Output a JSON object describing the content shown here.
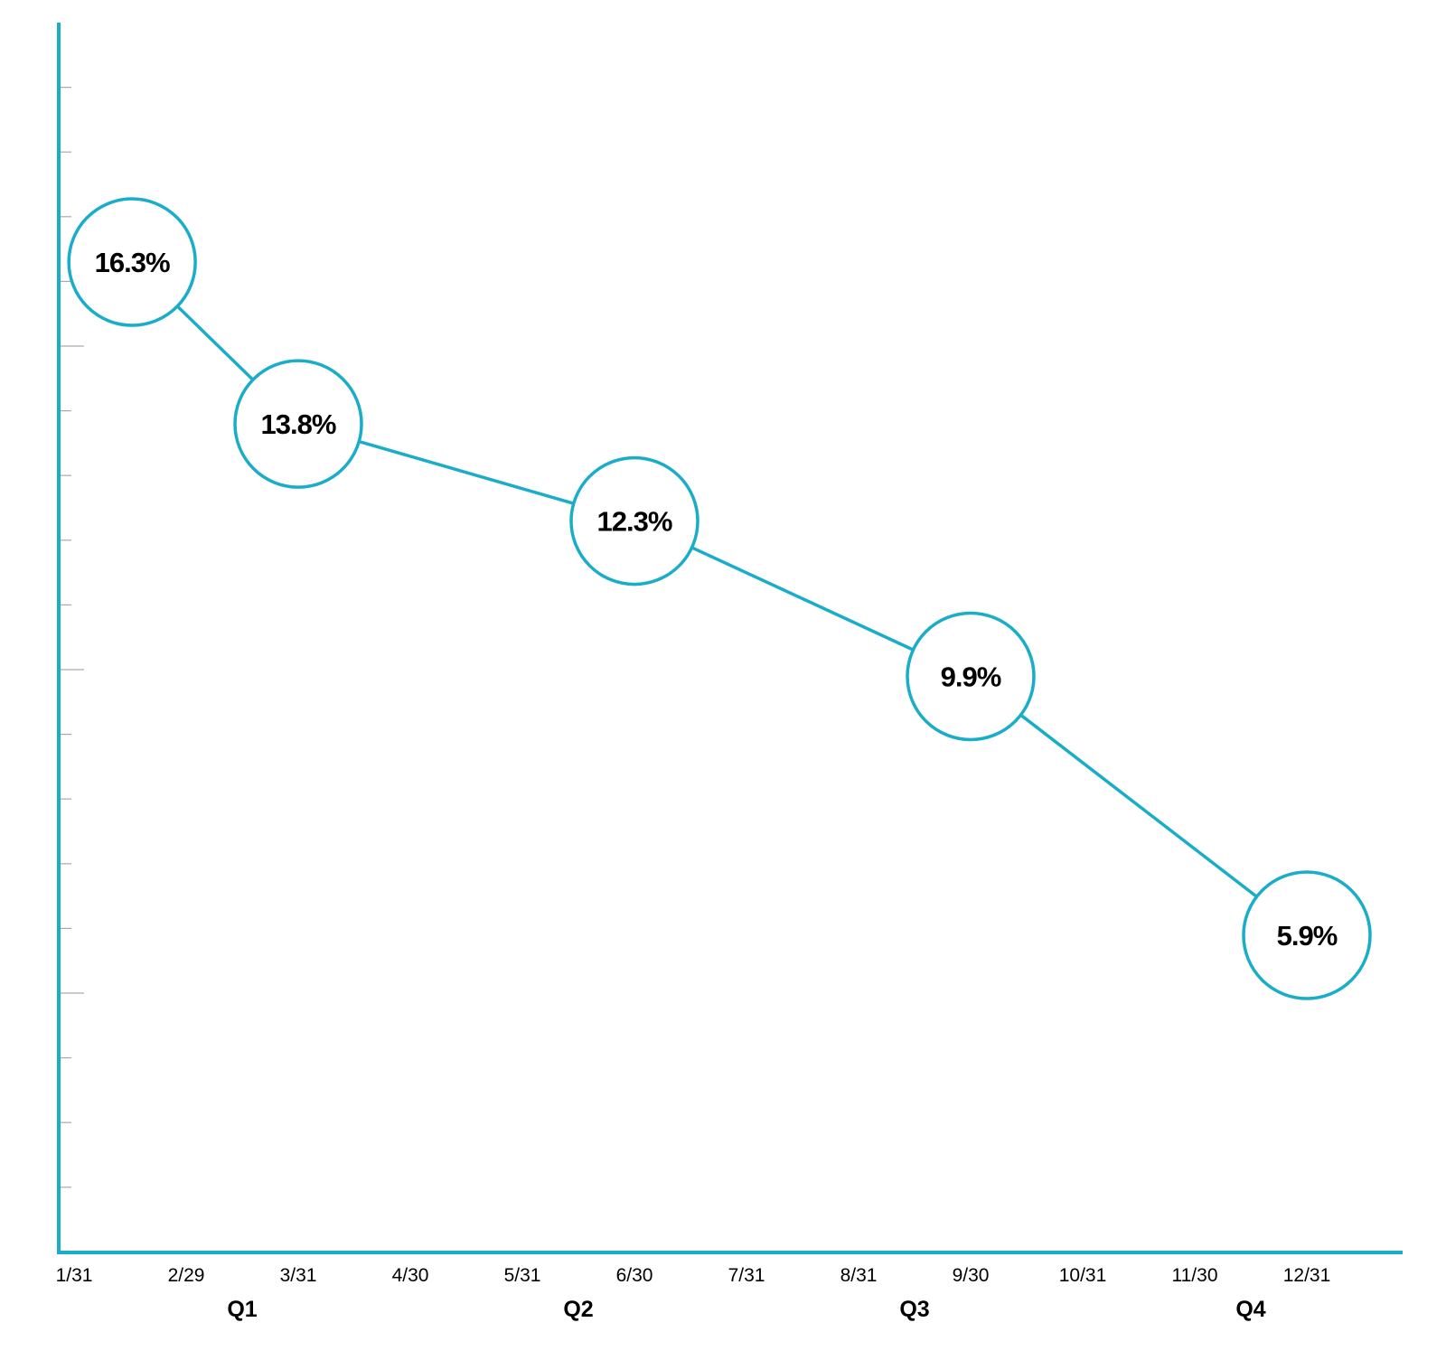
{
  "colors": {
    "accent": "#1aadc8",
    "tick": "#aaaaaa",
    "text": "#000000",
    "background": "#ffffff"
  },
  "chart_data": {
    "type": "line",
    "title": "",
    "xlabel": "",
    "ylabel": "",
    "grid": false,
    "legend": "none",
    "x_ticks": [
      "1/31",
      "2/29",
      "3/31",
      "4/30",
      "5/31",
      "6/30",
      "7/31",
      "8/31",
      "9/30",
      "10/31",
      "11/30",
      "12/31"
    ],
    "quarters": [
      "Q1",
      "Q2",
      "Q3",
      "Q4"
    ],
    "series": [
      {
        "points": [
          {
            "x": "2/15",
            "y": 16.3,
            "label": "16.3%"
          },
          {
            "x": "3/31",
            "y": 13.8,
            "label": "13.8%"
          },
          {
            "x": "6/30",
            "y": 12.3,
            "label": "12.3%"
          },
          {
            "x": "9/30",
            "y": 9.9,
            "label": "9.9%"
          },
          {
            "x": "12/31",
            "y": 5.9,
            "label": "5.9%"
          }
        ]
      }
    ]
  }
}
